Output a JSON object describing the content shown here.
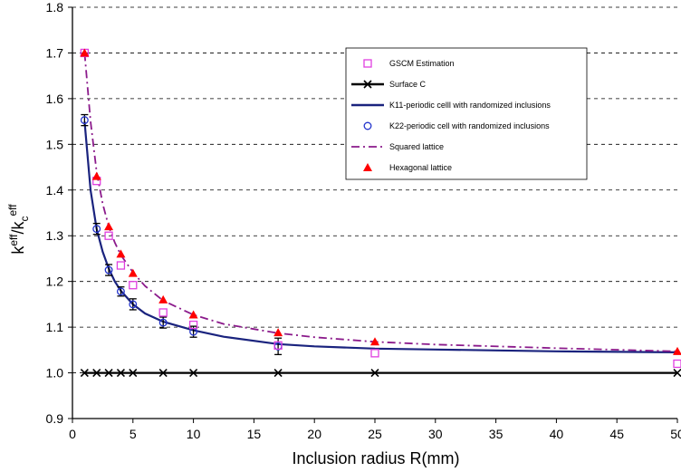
{
  "chart_data": {
    "type": "line",
    "xlabel": "Inclusion radius R(mm)",
    "ylabel": {
      "main": "k",
      "sup1": "eff",
      "slash": "/k",
      "sub": "c",
      "sup2": "eff"
    },
    "xlim": [
      0,
      50
    ],
    "ylim": [
      0.9,
      1.8
    ],
    "xticks": [
      0,
      5,
      10,
      15,
      20,
      25,
      30,
      35,
      40,
      45,
      50
    ],
    "yticks": [
      0.9,
      1.0,
      1.1,
      1.2,
      1.3,
      1.4,
      1.5,
      1.6,
      1.7,
      1.8
    ],
    "ytick_labels": [
      "0.9",
      "1.0",
      "1.1",
      "1.2",
      "1.3",
      "1.4",
      "1.5",
      "1.6",
      "1.7",
      "1.8"
    ],
    "grid": "horizontal-dashed",
    "legend_position": "top-right",
    "series": [
      {
        "name": "GSCM Estimation",
        "style": "open-square-markers",
        "color": "#e040e0",
        "points": [
          [
            1,
            1.7
          ],
          [
            2,
            1.42
          ],
          [
            3,
            1.3
          ],
          [
            4,
            1.235
          ],
          [
            5,
            1.192
          ],
          [
            7.5,
            1.132
          ],
          [
            10,
            1.105
          ],
          [
            17,
            1.06
          ],
          [
            25,
            1.043
          ],
          [
            50,
            1.02
          ]
        ]
      },
      {
        "name": "Surface  C",
        "style": "line-with-x-markers",
        "color": "#000000",
        "points": [
          [
            1,
            1.0
          ],
          [
            2,
            1.0
          ],
          [
            3,
            1.0
          ],
          [
            4,
            1.0
          ],
          [
            5,
            1.0
          ],
          [
            7.5,
            1.0
          ],
          [
            10,
            1.0
          ],
          [
            17,
            1.0
          ],
          [
            25,
            1.0
          ],
          [
            50,
            1.0
          ]
        ]
      },
      {
        "name": "K11-periodic celll  with randomized inclusions",
        "style": "solid-line",
        "color": "#1a237e",
        "points": [
          [
            1,
            1.55
          ],
          [
            1.5,
            1.4
          ],
          [
            2,
            1.315
          ],
          [
            2.5,
            1.265
          ],
          [
            3,
            1.228
          ],
          [
            3.5,
            1.2
          ],
          [
            4,
            1.18
          ],
          [
            5,
            1.15
          ],
          [
            6,
            1.13
          ],
          [
            7.5,
            1.112
          ],
          [
            10,
            1.093
          ],
          [
            12.5,
            1.079
          ],
          [
            17,
            1.063
          ],
          [
            20,
            1.058
          ],
          [
            25,
            1.053
          ],
          [
            30,
            1.051
          ],
          [
            40,
            1.047
          ],
          [
            50,
            1.045
          ]
        ]
      },
      {
        "name": "K22-periodic cell  with randomized inclusions",
        "style": "open-circle-markers-with-errorbars",
        "color": "#2233cc",
        "points": [
          [
            1,
            1.553
          ],
          [
            2,
            1.315
          ],
          [
            3,
            1.225
          ],
          [
            4,
            1.178
          ],
          [
            5,
            1.15
          ],
          [
            7.5,
            1.11
          ],
          [
            10,
            1.09
          ],
          [
            17,
            1.058
          ]
        ],
        "errors": [
          0.012,
          0.012,
          0.012,
          0.01,
          0.012,
          0.012,
          0.012,
          0.018
        ]
      },
      {
        "name": "Squared lattice",
        "style": "dash-dot-line",
        "color": "#8b1a8b",
        "points": [
          [
            1,
            1.7
          ],
          [
            1.5,
            1.55
          ],
          [
            2,
            1.44
          ],
          [
            2.5,
            1.37
          ],
          [
            3,
            1.32
          ],
          [
            3.5,
            1.285
          ],
          [
            4,
            1.258
          ],
          [
            5,
            1.22
          ],
          [
            6,
            1.19
          ],
          [
            7.5,
            1.158
          ],
          [
            10,
            1.127
          ],
          [
            12.5,
            1.107
          ],
          [
            17,
            1.087
          ],
          [
            20,
            1.078
          ],
          [
            25,
            1.068
          ],
          [
            30,
            1.062
          ],
          [
            40,
            1.054
          ],
          [
            50,
            1.047
          ]
        ]
      },
      {
        "name": "Hexagonal lattice",
        "style": "filled-triangle-markers",
        "color": "#ff0000",
        "points": [
          [
            1,
            1.7
          ],
          [
            2,
            1.43
          ],
          [
            3,
            1.32
          ],
          [
            4,
            1.26
          ],
          [
            5,
            1.218
          ],
          [
            7.5,
            1.16
          ],
          [
            10,
            1.127
          ],
          [
            17,
            1.088
          ],
          [
            25,
            1.068
          ],
          [
            50,
            1.047
          ]
        ]
      }
    ]
  }
}
